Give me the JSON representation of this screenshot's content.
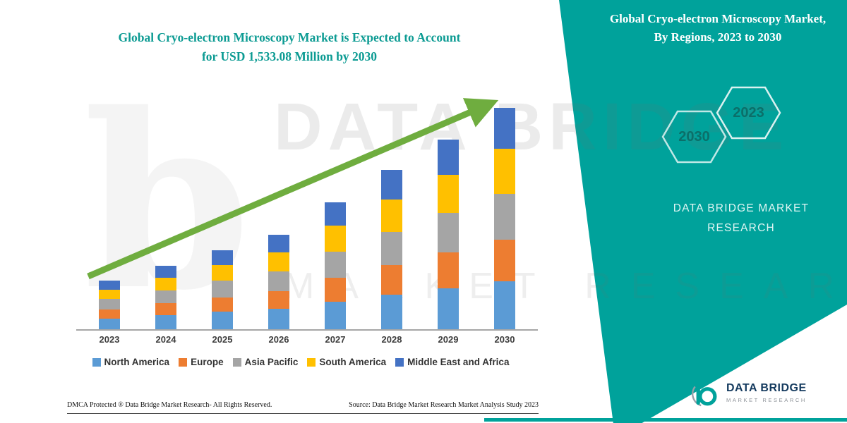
{
  "colors": {
    "teal": "#00A29B",
    "teal_dark": "#0B6F69",
    "title_teal": "#0C9B93",
    "arrow_green": "#6FAD3F",
    "logo_navy": "#143A5E"
  },
  "header": {
    "title": "Global Cryo-electron Microscopy Market is Expected to Account for USD 1,533.08 Million by 2030"
  },
  "right_panel": {
    "heading": "Global Cryo-electron Microscopy Market, By Regions, 2023 to 2030",
    "hexagon_years": [
      "2030",
      "2023"
    ],
    "brand_line1": "DATA BRIDGE MARKET",
    "brand_line2": "RESEARCH"
  },
  "chart_data": {
    "type": "bar",
    "stacked": true,
    "title": "Global Cryo-electron Microscopy Market, By Regions, 2023 to 2030",
    "unit": "USD Million",
    "categories": [
      "2023",
      "2024",
      "2025",
      "2026",
      "2027",
      "2028",
      "2029",
      "2030"
    ],
    "series": [
      {
        "name": "North America",
        "color": "#5B9BD5",
        "values": [
          75,
          97,
          120,
          143,
          192,
          240,
          285,
          332
        ]
      },
      {
        "name": "Europe",
        "color": "#ED7D31",
        "values": [
          63,
          82,
          102,
          122,
          164,
          206,
          245,
          287
        ]
      },
      {
        "name": "Asia Pacific",
        "color": "#A5A5A5",
        "values": [
          70,
          91,
          114,
          136,
          183,
          230,
          274,
          319
        ]
      },
      {
        "name": "South America",
        "color": "#FFC000",
        "values": [
          68,
          89,
          111,
          133,
          178,
          224,
          267,
          311
        ]
      },
      {
        "name": "Middle East and Africa",
        "color": "#4472C4",
        "values": [
          61,
          80,
          100,
          120,
          161,
          203,
          242,
          284.08
        ]
      }
    ],
    "totals_estimated": [
      337,
      439,
      547,
      654,
      878,
      1103,
      1313,
      1533.08
    ],
    "highlight_value_2030": "USD 1,533.08 Million",
    "ylim": [
      0,
      1533.08
    ],
    "grid": false,
    "legend_position": "bottom",
    "trend_arrow": true
  },
  "watermark": {
    "line1": "DATA BRIDGE",
    "line2": "MARKET RESEARCH",
    "logo_letter": "b"
  },
  "footer": {
    "dmca": "DMCA Protected ® Data Bridge Market Research-  All Rights Reserved.",
    "source": "Source: Data Bridge Market Research  Market Analysis Study 2023"
  },
  "logo": {
    "title": "DATA BRIDGE",
    "subtitle": "MARKET RESEARCH"
  }
}
